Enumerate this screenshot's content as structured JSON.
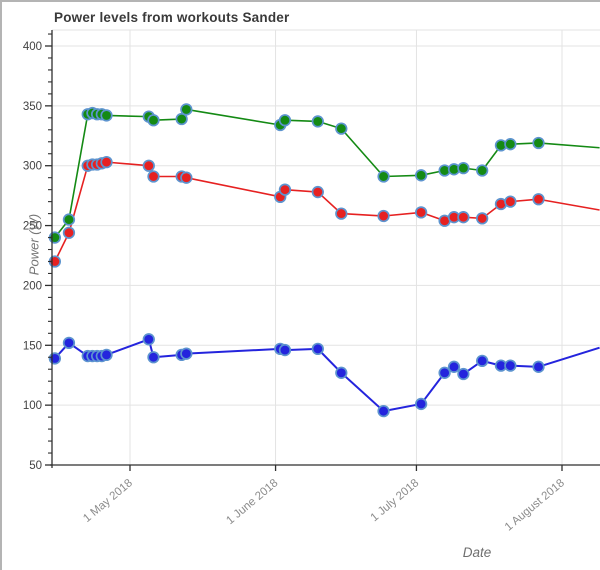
{
  "panel": {
    "kind": "chart-widget"
  },
  "chart_data": {
    "type": "line",
    "title": "Power levels from workouts Sander",
    "xlabel": "Date",
    "ylabel": "Power (W)",
    "legend_position": "none",
    "grid": true,
    "ylim": [
      50,
      410
    ],
    "y_ticks": [
      50,
      100,
      150,
      200,
      250,
      300,
      350,
      400
    ],
    "y_minor_step": 10,
    "x_ticks": [
      {
        "date": "2018-05-01",
        "label": "1 May 2018"
      },
      {
        "date": "2018-06-01",
        "label": "1 June 2018"
      },
      {
        "date": "2018-07-01",
        "label": "1 July 2018"
      },
      {
        "date": "2018-08-01",
        "label": "1 August 2018"
      }
    ],
    "x_range": [
      "2018-04-14",
      "2018-08-09"
    ],
    "series": [
      {
        "name": "series-green",
        "color": "#148a14",
        "marker_stroke": "#5d94cf",
        "line_width": 1.6,
        "points": [
          [
            "2018-04-15",
            240
          ],
          [
            "2018-04-18",
            255
          ],
          [
            "2018-04-22",
            343
          ],
          [
            "2018-04-23",
            344
          ],
          [
            "2018-04-24",
            343
          ],
          [
            "2018-04-25",
            343
          ],
          [
            "2018-04-26",
            342
          ],
          [
            "2018-05-05",
            341
          ],
          [
            "2018-05-06",
            338
          ],
          [
            "2018-05-12",
            339
          ],
          [
            "2018-05-13",
            347
          ],
          [
            "2018-06-02",
            334
          ],
          [
            "2018-06-03",
            338
          ],
          [
            "2018-06-10",
            337
          ],
          [
            "2018-06-15",
            331
          ],
          [
            "2018-06-24",
            291
          ],
          [
            "2018-07-02",
            292
          ],
          [
            "2018-07-07",
            296
          ],
          [
            "2018-07-09",
            297
          ],
          [
            "2018-07-11",
            298
          ],
          [
            "2018-07-15",
            296
          ],
          [
            "2018-07-19",
            317
          ],
          [
            "2018-07-21",
            318
          ],
          [
            "2018-07-27",
            319
          ]
        ],
        "trail_end": [
          "2018-08-09",
          315
        ]
      },
      {
        "name": "series-red",
        "color": "#e62121",
        "marker_stroke": "#5d94cf",
        "line_width": 1.6,
        "points": [
          [
            "2018-04-15",
            220
          ],
          [
            "2018-04-18",
            244
          ],
          [
            "2018-04-22",
            300
          ],
          [
            "2018-04-23",
            301
          ],
          [
            "2018-04-24",
            301
          ],
          [
            "2018-04-25",
            302
          ],
          [
            "2018-04-26",
            303
          ],
          [
            "2018-05-05",
            300
          ],
          [
            "2018-05-06",
            291
          ],
          [
            "2018-05-12",
            291
          ],
          [
            "2018-05-13",
            290
          ],
          [
            "2018-06-02",
            274
          ],
          [
            "2018-06-03",
            280
          ],
          [
            "2018-06-10",
            278
          ],
          [
            "2018-06-15",
            260
          ],
          [
            "2018-06-24",
            258
          ],
          [
            "2018-07-02",
            261
          ],
          [
            "2018-07-07",
            254
          ],
          [
            "2018-07-09",
            257
          ],
          [
            "2018-07-11",
            257
          ],
          [
            "2018-07-15",
            256
          ],
          [
            "2018-07-19",
            268
          ],
          [
            "2018-07-21",
            270
          ],
          [
            "2018-07-27",
            272
          ]
        ],
        "trail_end": [
          "2018-08-09",
          263
        ]
      },
      {
        "name": "series-blue",
        "color": "#2424dd",
        "marker_stroke": "#5d94cf",
        "line_width": 2,
        "points": [
          [
            "2018-04-15",
            139
          ],
          [
            "2018-04-18",
            152
          ],
          [
            "2018-04-22",
            141
          ],
          [
            "2018-04-23",
            141
          ],
          [
            "2018-04-24",
            141
          ],
          [
            "2018-04-25",
            141
          ],
          [
            "2018-04-26",
            142
          ],
          [
            "2018-05-05",
            155
          ],
          [
            "2018-05-06",
            140
          ],
          [
            "2018-05-12",
            142
          ],
          [
            "2018-05-13",
            143
          ],
          [
            "2018-06-02",
            147
          ],
          [
            "2018-06-03",
            146
          ],
          [
            "2018-06-10",
            147
          ],
          [
            "2018-06-15",
            127
          ],
          [
            "2018-06-24",
            95
          ],
          [
            "2018-07-02",
            101
          ],
          [
            "2018-07-07",
            127
          ],
          [
            "2018-07-09",
            132
          ],
          [
            "2018-07-11",
            126
          ],
          [
            "2018-07-15",
            137
          ],
          [
            "2018-07-19",
            133
          ],
          [
            "2018-07-21",
            133
          ],
          [
            "2018-07-27",
            132
          ]
        ],
        "trail_end": [
          "2018-08-09",
          148
        ]
      }
    ],
    "style": {
      "grid_color": "#e3e3e3",
      "axis_color": "#2f2f2f",
      "y_tick_label_color": "#424242",
      "x_tick_label_color": "#8c8c8c",
      "plot_top_border_color": "#e3e3e3"
    }
  }
}
